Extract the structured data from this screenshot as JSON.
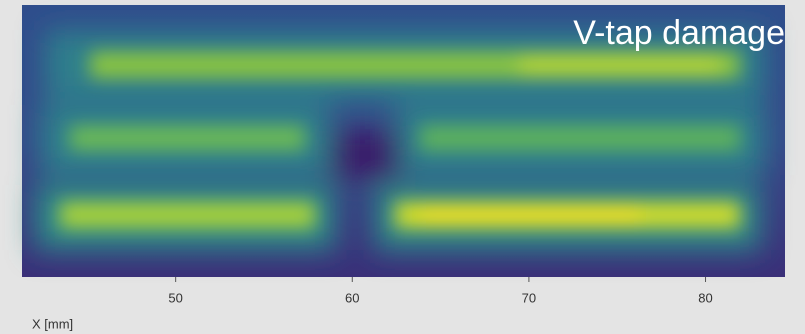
{
  "chart_data": {
    "type": "heatmap",
    "annotation": "V-tap damage",
    "xlabel": "X [mm]",
    "xlim": [
      41.3,
      84.5
    ],
    "xticks": [
      50,
      60,
      70,
      80
    ]
  }
}
